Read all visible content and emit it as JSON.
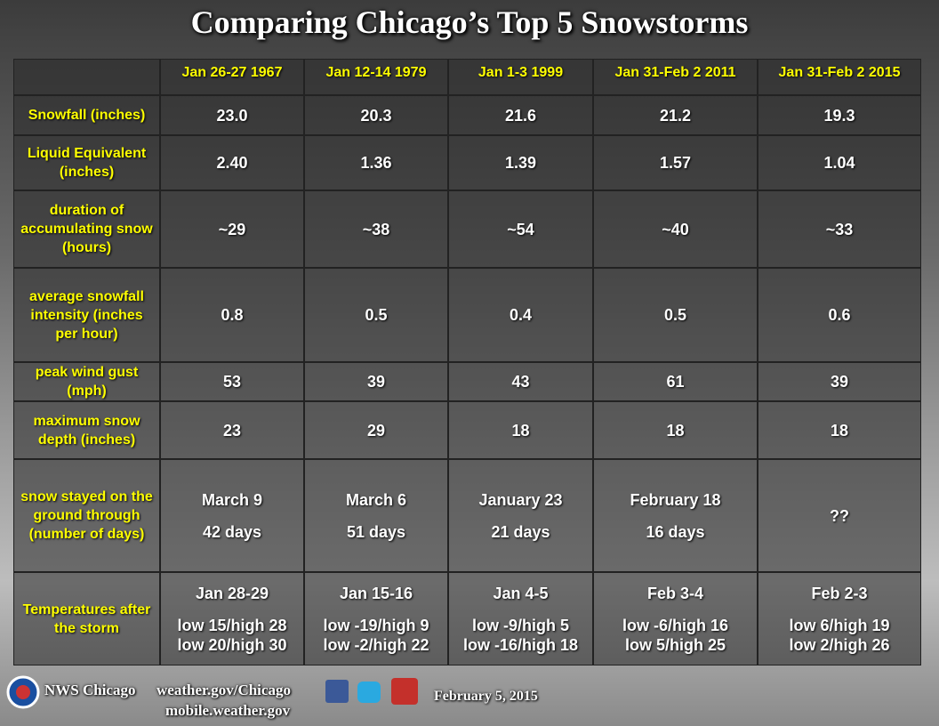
{
  "header": {
    "title": "Comparing Chicago’s Top 5 Snowstorms"
  },
  "table": {
    "columns": [
      "Jan 26-27 1967",
      "Jan 12-14 1979",
      "Jan 1-3 1999",
      "Jan 31-Feb 2 2011",
      "Jan 31-Feb 2 2015"
    ],
    "rows": [
      {
        "label": "Snowfall (inches)",
        "cells": [
          "23.0",
          "20.3",
          "21.6",
          "21.2",
          "19.3"
        ]
      },
      {
        "label": "Liquid Equivalent (inches)",
        "cells": [
          "2.40",
          "1.36",
          "1.39",
          "1.57",
          "1.04"
        ]
      },
      {
        "label": "duration of accumulating snow (hours)",
        "cells": [
          "~29",
          "~38",
          "~54",
          "~40",
          "~33"
        ]
      },
      {
        "label": "average snowfall intensity (inches per hour)",
        "cells": [
          "0.8",
          "0.5",
          "0.4",
          "0.5",
          "0.6"
        ]
      },
      {
        "label": "peak wind gust (mph)",
        "cells": [
          "53",
          "39",
          "43",
          "61",
          "39"
        ]
      },
      {
        "label": "maximum snow depth (inches)",
        "cells": [
          "23",
          "29",
          "18",
          "18",
          "18"
        ]
      },
      {
        "label": "snow stayed on the ground through (number of days)",
        "cells": [
          {
            "date": "March 9",
            "days": "42 days"
          },
          {
            "date": "March 6",
            "days": "51 days"
          },
          {
            "date": "January 23",
            "days": "21 days"
          },
          {
            "date": "February 18",
            "days": "16 days"
          },
          "??"
        ]
      },
      {
        "label": "Temperatures after the storm",
        "cells": [
          {
            "date": "Jan 28-29",
            "temps": [
              "low 15/high 28",
              "low 20/high 30"
            ]
          },
          {
            "date": "Jan 15-16",
            "temps": [
              "low -19/high 9",
              "low -2/high 22"
            ]
          },
          {
            "date": "Jan 4-5",
            "temps": [
              "low -9/high 5",
              "low -16/high 18"
            ]
          },
          {
            "date": "Feb 3-4",
            "temps": [
              "low -6/high 16",
              "low 5/high 25"
            ]
          },
          {
            "date": "Feb 2-3",
            "temps": [
              "low 6/high 19",
              "low 2/high 26"
            ]
          }
        ]
      }
    ]
  },
  "footer": {
    "office": "NWS Chicago",
    "website": "weather.gov/Chicago",
    "mobile": "mobile.weather.gov",
    "date": "February 5, 2015"
  }
}
